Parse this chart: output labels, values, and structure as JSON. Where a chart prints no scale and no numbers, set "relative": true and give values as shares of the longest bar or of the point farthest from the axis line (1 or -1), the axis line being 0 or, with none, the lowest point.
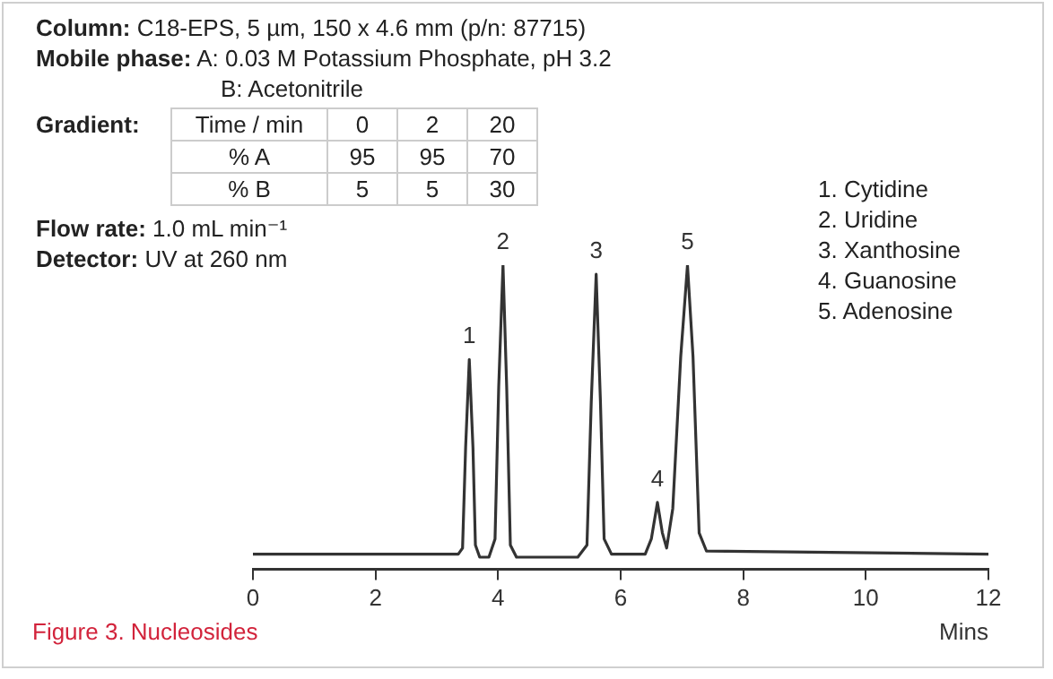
{
  "chart_data": {
    "type": "line",
    "relative": true,
    "xlabel": "Mins",
    "xlim": [
      0,
      12
    ],
    "xticks": [
      0,
      2,
      4,
      6,
      8,
      10,
      12
    ],
    "grid": false,
    "legend": false,
    "marker": "none",
    "line_style": "solid",
    "x": [
      0,
      3.35,
      3.42,
      3.47,
      3.53,
      3.59,
      3.63,
      3.7,
      3.85,
      3.95,
      4.01,
      4.08,
      4.14,
      4.2,
      4.3,
      5.3,
      5.45,
      5.52,
      5.6,
      5.67,
      5.73,
      5.85,
      6.4,
      6.5,
      6.6,
      6.68,
      6.75,
      6.85,
      6.98,
      7.09,
      7.18,
      7.28,
      7.4,
      12
    ],
    "series": [
      {
        "color": "#333333",
        "values": [
          0.05,
          0.05,
          0.07,
          0.4,
          0.69,
          0.4,
          0.08,
          0.04,
          0.04,
          0.1,
          0.6,
          1,
          0.6,
          0.08,
          0.04,
          0.04,
          0.08,
          0.55,
          0.97,
          0.55,
          0.1,
          0.05,
          0.05,
          0.1,
          0.22,
          0.12,
          0.07,
          0.2,
          0.7,
          1,
          0.7,
          0.12,
          0.06,
          0.05
        ]
      }
    ],
    "annotations": [
      "Column: C18-EPS, 5 µm, 150 x 4.6 mm (p/n: 87715)",
      "Mobile phase: A: 0.03 M Potassium Phosphate, pH 3.2",
      "B: Acetonitrile",
      "Gradient:",
      "Time / min",
      "0",
      "2",
      "20",
      "% A",
      "95",
      "95",
      "70",
      "% B",
      "5",
      "5",
      "30",
      "Flow rate: 1.0 mL min⁻¹",
      "Detector: UV at 260 nm",
      "1. Cytidine",
      "2. Uridine",
      "3. Xanthosine",
      "4. Guanosine",
      "5. Adenosine",
      "Figure 3. Nucleosides",
      {
        "text": "1",
        "x": 3.53,
        "y": 0.69
      },
      {
        "text": "2",
        "x": 4.08,
        "y": 1
      },
      {
        "text": "3",
        "x": 5.6,
        "y": 0.97
      },
      {
        "text": "4",
        "x": 6.6,
        "y": 0.22
      },
      {
        "text": "5",
        "x": 7.09,
        "y": 1
      }
    ]
  }
}
